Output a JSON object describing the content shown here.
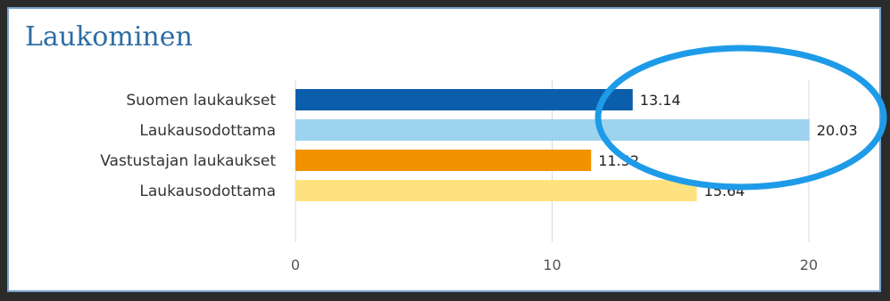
{
  "panel": {
    "title": "Laukominen"
  },
  "chart_data": {
    "type": "bar",
    "orientation": "horizontal",
    "title": "",
    "xlabel": "",
    "ylabel": "",
    "categories": [
      "Suomen laukaukset",
      "Laukausodottama",
      "Vastustajan laukaukset",
      "Laukausodottama"
    ],
    "values": [
      13.14,
      20.03,
      11.52,
      15.64
    ],
    "value_labels": [
      "13.14",
      "20.03",
      "11.52",
      "15.64"
    ],
    "colors": [
      "#0a5eaa",
      "#9dd3ee",
      "#f39200",
      "#fde27f"
    ],
    "xlim": [
      0,
      22
    ],
    "xticks": [
      0,
      10,
      20
    ],
    "xtick_labels": [
      "0",
      "10",
      "20"
    ],
    "grid": "vertical",
    "annotation": {
      "shape": "ellipse",
      "color": "#1e9be8"
    }
  }
}
